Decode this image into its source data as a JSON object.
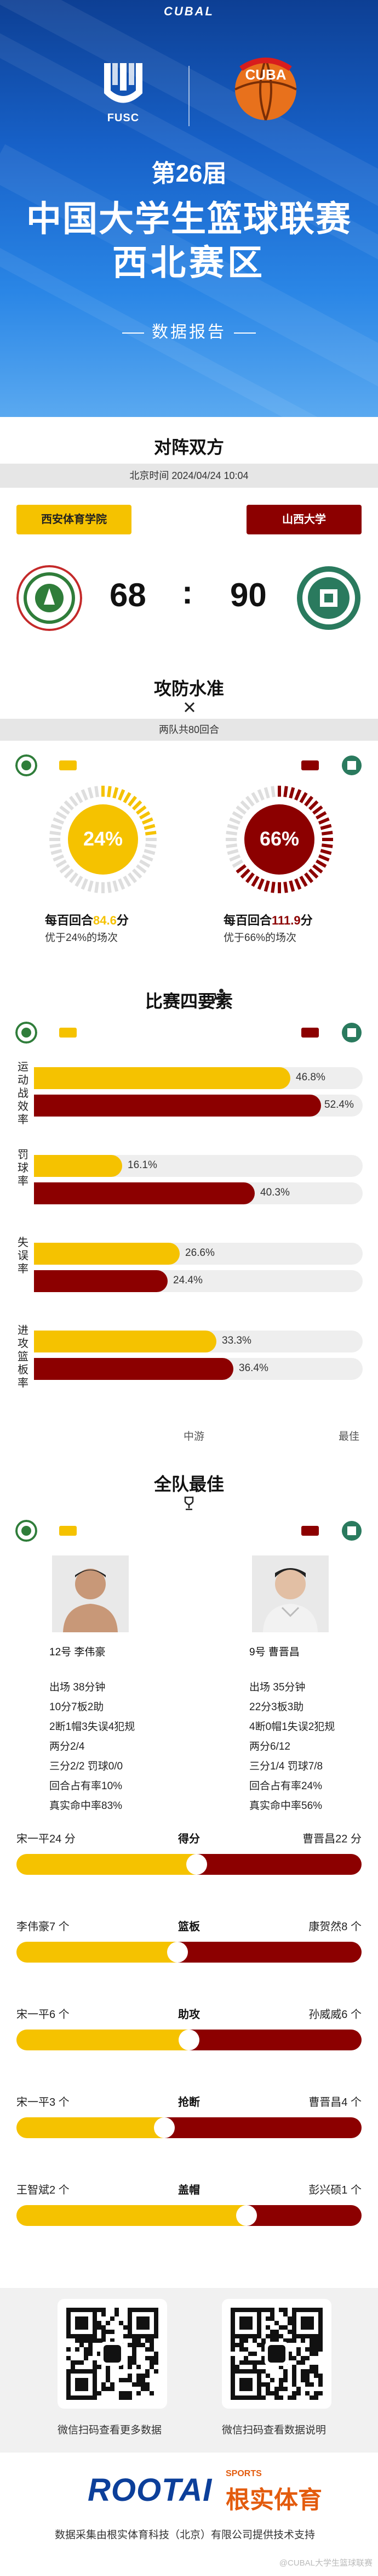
{
  "header": {
    "brand": "CUBAL",
    "org_logo_text": "FUSC",
    "cuba_logo_text": "CUBA",
    "title_line1": "第26届",
    "title_line2": "中国大学生篮球联赛",
    "title_line3": "西北赛区",
    "subtitle": "数据报告"
  },
  "matchup": {
    "section_title": "对阵双方",
    "time": "北京时间  2024/04/24 10:04",
    "home": {
      "name": "西安体育学院",
      "score": "68"
    },
    "away": {
      "name": "山西大学",
      "score": "90"
    },
    "separator": ":"
  },
  "offense": {
    "section_title": "攻防水准",
    "possessions_note": "两队共80回合",
    "home": {
      "pct": "24%",
      "pct_value": 24,
      "per100_label": "每百回合",
      "per100_value": "84.6",
      "per100_unit": "分",
      "better_than": "优于24%的场次"
    },
    "away": {
      "pct": "66%",
      "pct_value": 66,
      "per100_label": "每百回合",
      "per100_value": "111.9",
      "per100_unit": "分",
      "better_than": "优于66%的场次"
    }
  },
  "four_factors": {
    "section_title": "比赛四要素",
    "items": [
      {
        "label": "运动战效率",
        "home": "46.8%",
        "away": "52.4%",
        "home_val": 46.8,
        "away_val": 52.4
      },
      {
        "label": "罚球率",
        "home": "16.1%",
        "away": "40.3%",
        "home_val": 16.1,
        "away_val": 40.3
      },
      {
        "label": "失误率",
        "home": "26.6%",
        "away": "24.4%",
        "home_val": 26.6,
        "away_val": 24.4
      },
      {
        "label": "进攻篮板率",
        "home": "33.3%",
        "away": "36.4%",
        "home_val": 33.3,
        "away_val": 36.4
      }
    ],
    "axis_mid": "中游",
    "axis_best": "最佳"
  },
  "best": {
    "section_title": "全队最佳",
    "home_player": {
      "label": "12号  李伟豪",
      "stats": [
        "出场 38分钟",
        "10分7板2助",
        "2断1帽3失误4犯规",
        "两分2/4",
        "三分2/2 罚球0/0",
        "回合占有率10%",
        "真实命中率83%"
      ]
    },
    "away_player": {
      "label": "9号  曹晋昌",
      "stats": [
        "出场 35分钟",
        "22分3板3助",
        "4断0帽1失误2犯规",
        "两分6/12",
        "三分1/4 罚球7/8",
        "回合占有率24%",
        "真实命中率56%"
      ]
    }
  },
  "leaders": [
    {
      "category": "得分",
      "home": "宋一平24 分",
      "away": "曹晋昌22 分",
      "home_val": 24,
      "away_val": 22
    },
    {
      "category": "篮板",
      "home": "李伟豪7 个",
      "away": "康贺然8 个",
      "home_val": 7,
      "away_val": 8
    },
    {
      "category": "助攻",
      "home": "宋一平6 个",
      "away": "孙威威6 个",
      "home_val": 6,
      "away_val": 6
    },
    {
      "category": "抢断",
      "home": "宋一平3 个",
      "away": "曹晋昌4 个",
      "home_val": 3,
      "away_val": 4
    },
    {
      "category": "盖帽",
      "home": "王智斌2 个",
      "away": "彭兴硕1 个",
      "home_val": 2,
      "away_val": 1
    }
  ],
  "qr": {
    "left_caption": "微信扫码查看更多数据",
    "right_caption": "微信扫码查看数据说明"
  },
  "footer": {
    "brand": "ROOTAI",
    "brand_sports": "SPORTS",
    "brand_cn": "根实体育",
    "note": "数据采集由根实体育科技（北京）有限公司提供技术支持",
    "watermark": "@CUBAL大学生篮球联赛"
  },
  "colors": {
    "home": "#f5c200",
    "away": "#8c0000",
    "hero": "#1761c8"
  }
}
